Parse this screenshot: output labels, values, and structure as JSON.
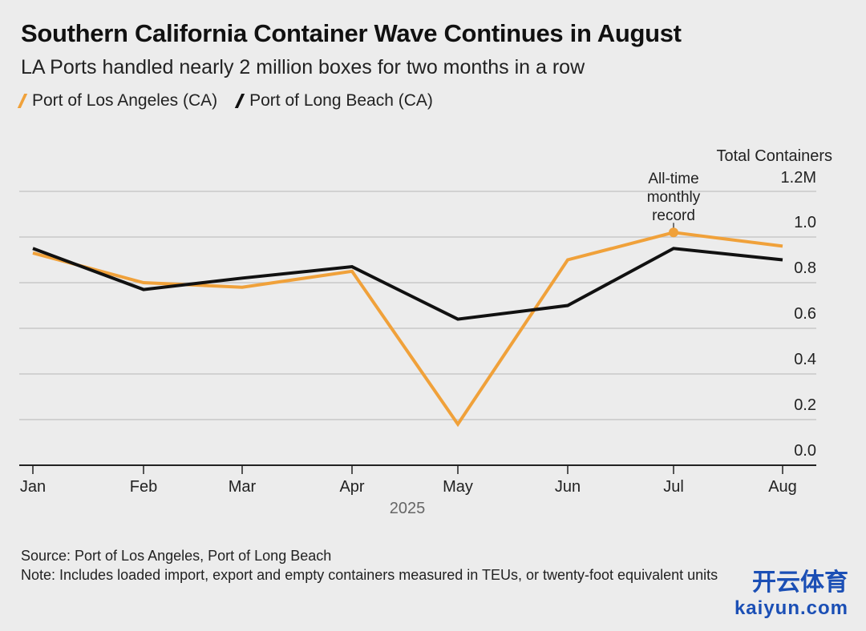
{
  "chart_data": {
    "type": "line",
    "title": "Southern California Container Wave Continues in August",
    "subtitle": "LA Ports handled nearly 2 million boxes for two months in a row",
    "categories": [
      "Jan",
      "Feb",
      "Mar",
      "Apr",
      "May",
      "Jun",
      "Jul",
      "Aug"
    ],
    "xlabel": "2025",
    "ylabel": "Total Containers",
    "yticks": [
      "0.0",
      "0.2",
      "0.4",
      "0.6",
      "0.8",
      "1.0",
      "1.2M"
    ],
    "ylim": [
      0,
      1.2
    ],
    "grid": true,
    "legend_position": "top-left",
    "series": [
      {
        "name": "Port of Los Angeles (CA)",
        "color": "#f0a13a",
        "values": [
          0.93,
          0.8,
          0.78,
          0.85,
          0.18,
          0.9,
          1.02,
          0.96
        ]
      },
      {
        "name": "Port of Long Beach (CA)",
        "color": "#111111",
        "values": [
          0.95,
          0.77,
          0.82,
          0.87,
          0.64,
          0.7,
          0.95,
          0.9
        ]
      }
    ],
    "annotations": [
      {
        "series": 0,
        "category": "Jul",
        "lines": [
          "All-time",
          "monthly",
          "record"
        ]
      }
    ]
  },
  "footer": {
    "source": "Source: Port of Los Angeles, Port of Long Beach",
    "note": "Note: Includes loaded import, export and empty containers measured in TEUs, or twenty-foot equivalent units"
  },
  "watermark": {
    "cn": "开云体育",
    "en": "kaiyun.com"
  }
}
